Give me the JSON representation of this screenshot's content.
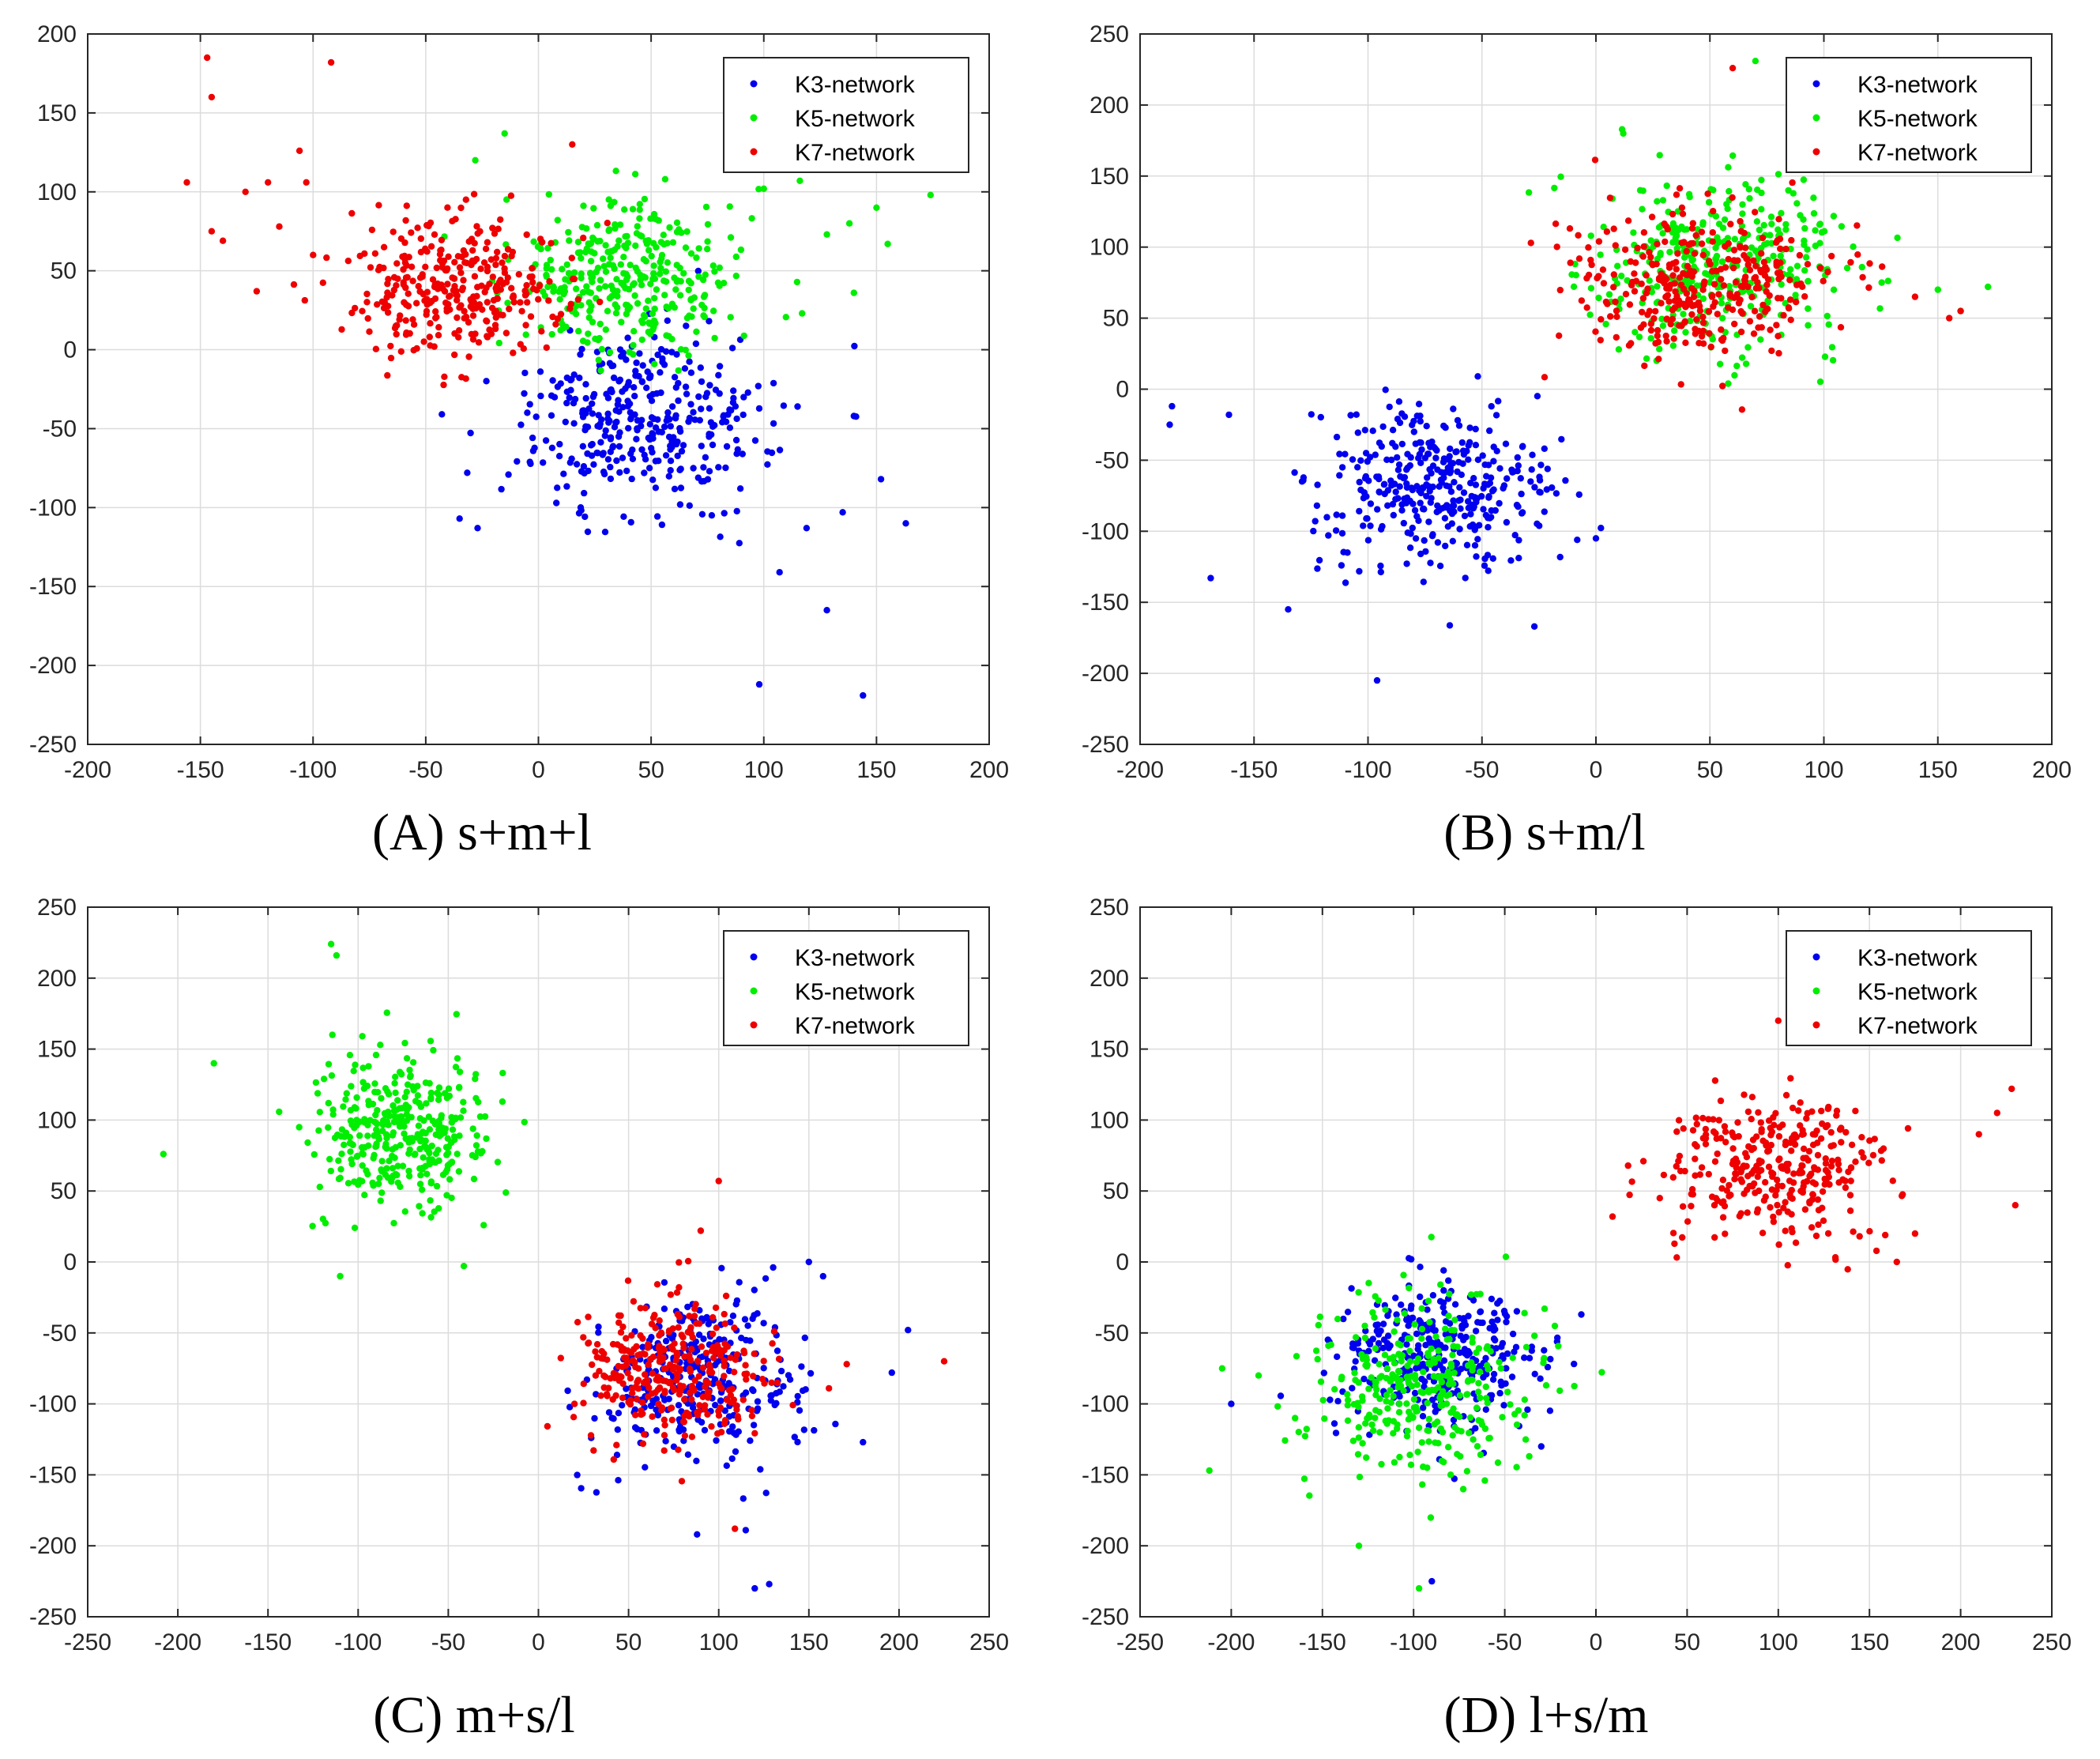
{
  "colors": {
    "k3": "#0000ee",
    "k5": "#00ee00",
    "k7": "#ee0000",
    "grid": "#dcdcdc",
    "axis": "#262626"
  },
  "chart_data": [
    {
      "type": "scatter",
      "title": "(A) s+m+l",
      "xlim": [
        -200,
        200
      ],
      "ylim": [
        -250,
        200
      ],
      "xticks": [
        -200,
        -150,
        -100,
        -50,
        0,
        50,
        100,
        150,
        200
      ],
      "yticks": [
        -250,
        -200,
        -150,
        -100,
        -50,
        0,
        50,
        100,
        150,
        200
      ],
      "legend": [
        "K3-network",
        "K5-network",
        "K7-network"
      ],
      "legend_position": "top-right",
      "series": [
        {
          "name": "K3-network",
          "color": "#0000ee",
          "center": [
            45,
            -45
          ],
          "spread": [
            28,
            28
          ],
          "n": 360,
          "extra": [
            [
              98,
              -212
            ],
            [
              144,
              -219
            ],
            [
              128,
              -165
            ],
            [
              107,
              -141
            ],
            [
              140,
              -42
            ],
            [
              163,
              -110
            ],
            [
              152,
              -82
            ],
            [
              135,
              -103
            ],
            [
              -35,
              -107
            ],
            [
              -27,
              -113
            ],
            [
              115,
              -36
            ],
            [
              119,
              -113
            ]
          ]
        },
        {
          "name": "K5-network",
          "color": "#00ee00",
          "center": [
            38,
            45
          ],
          "spread": [
            25,
            24
          ],
          "n": 340,
          "extra": [
            [
              174,
              98
            ],
            [
              155,
              67
            ],
            [
              150,
              90
            ],
            [
              140,
              36
            ],
            [
              138,
              80
            ],
            [
              128,
              73
            ],
            [
              117,
              23
            ],
            [
              116,
              107
            ],
            [
              100,
              102
            ],
            [
              -15,
              137
            ],
            [
              -28,
              120
            ]
          ]
        },
        {
          "name": "K7-network",
          "color": "#ee0000",
          "center": [
            -40,
            40
          ],
          "spread": [
            24,
            23
          ],
          "n": 330,
          "extra": [
            [
              -147,
              185
            ],
            [
              -145,
              160
            ],
            [
              -92,
              182
            ],
            [
              -156,
              106
            ],
            [
              -130,
              100
            ],
            [
              -120,
              106
            ],
            [
              -115,
              78
            ],
            [
              -106,
              126
            ],
            [
              -103,
              106
            ],
            [
              -100,
              60
            ],
            [
              -125,
              37
            ],
            [
              -145,
              75
            ],
            [
              -140,
              69
            ],
            [
              15,
              130
            ]
          ]
        }
      ]
    },
    {
      "type": "scatter",
      "title": "(B) s+m/l",
      "xlim": [
        -200,
        200
      ],
      "ylim": [
        -250,
        250
      ],
      "xticks": [
        -200,
        -150,
        -100,
        -50,
        0,
        50,
        100,
        150,
        200
      ],
      "yticks": [
        -250,
        -200,
        -150,
        -100,
        -50,
        0,
        50,
        100,
        150,
        200,
        250
      ],
      "legend": [
        "K3-network",
        "K5-network",
        "K7-network"
      ],
      "legend_position": "top-right",
      "series": [
        {
          "name": "K3-network",
          "color": "#0000ee",
          "center": [
            -70,
            -70
          ],
          "spread": [
            27,
            30
          ],
          "n": 360,
          "extra": [
            [
              -186,
              -12
            ],
            [
              -187,
              -25
            ],
            [
              -169,
              -133
            ],
            [
              -161,
              -18
            ],
            [
              -135,
              -155
            ],
            [
              -96,
              -205
            ],
            [
              -27,
              -167
            ],
            [
              0,
              -105
            ]
          ]
        },
        {
          "name": "K5-network",
          "color": "#00ee00",
          "center": [
            55,
            85
          ],
          "spread": [
            30,
            30
          ],
          "n": 360,
          "extra": [
            [
              172,
              72
            ],
            [
              160,
              55
            ],
            [
              150,
              70
            ],
            [
              70,
              231
            ],
            [
              12,
              180
            ]
          ]
        },
        {
          "name": "K7-network",
          "color": "#ee0000",
          "center": [
            50,
            75
          ],
          "spread": [
            28,
            27
          ],
          "n": 340,
          "extra": [
            [
              60,
              226
            ],
            [
              160,
              55
            ],
            [
              155,
              50
            ],
            [
              140,
              65
            ],
            [
              5,
              60
            ]
          ]
        }
      ]
    },
    {
      "type": "scatter",
      "title": "(C) m+s/l",
      "xlim": [
        -250,
        250
      ],
      "ylim": [
        -250,
        250
      ],
      "xticks": [
        -250,
        -200,
        -150,
        -100,
        -50,
        0,
        50,
        100,
        150,
        200,
        250
      ],
      "yticks": [
        -250,
        -200,
        -150,
        -100,
        -50,
        0,
        50,
        100,
        150,
        200,
        250
      ],
      "legend": [
        "K3-network",
        "K5-network",
        "K7-network"
      ],
      "legend_position": "top-right",
      "series": [
        {
          "name": "K3-network",
          "color": "#0000ee",
          "center": [
            85,
            -85
          ],
          "spread": [
            28,
            30
          ],
          "n": 330,
          "extra": [
            [
              120,
              -230
            ],
            [
              128,
              -227
            ],
            [
              88,
              -192
            ],
            [
              115,
              -189
            ],
            [
              205,
              -48
            ],
            [
              196,
              -78
            ],
            [
              180,
              -127
            ],
            [
              150,
              0
            ]
          ]
        },
        {
          "name": "K5-network",
          "color": "#00ee00",
          "center": [
            -75,
            90
          ],
          "spread": [
            26,
            28
          ],
          "n": 360,
          "extra": [
            [
              -208,
              76
            ],
            [
              -180,
              140
            ],
            [
              -115,
              224
            ],
            [
              -112,
              216
            ],
            [
              -110,
              -10
            ],
            [
              -20,
              113
            ]
          ]
        },
        {
          "name": "K7-network",
          "color": "#ee0000",
          "center": [
            75,
            -75
          ],
          "spread": [
            26,
            24
          ],
          "n": 330,
          "extra": [
            [
              225,
              -70
            ],
            [
              100,
              57
            ],
            [
              90,
              22
            ],
            [
              20,
              -100
            ],
            [
              109,
              -188
            ],
            [
              171,
              -72
            ]
          ]
        }
      ]
    },
    {
      "type": "scatter",
      "title": "(D) l+s/m",
      "xlim": [
        -250,
        250
      ],
      "ylim": [
        -250,
        250
      ],
      "xticks": [
        -250,
        -200,
        -150,
        -100,
        -50,
        0,
        50,
        100,
        150,
        200,
        250
      ],
      "yticks": [
        -250,
        -200,
        -150,
        -100,
        -50,
        0,
        50,
        100,
        150,
        200,
        250
      ],
      "legend": [
        "K3-network",
        "K5-network",
        "K7-network"
      ],
      "legend_position": "top-right",
      "series": [
        {
          "name": "K3-network",
          "color": "#0000ee",
          "center": [
            -85,
            -65
          ],
          "spread": [
            27,
            25
          ],
          "n": 330,
          "extra": [
            [
              -90,
              -225
            ],
            [
              -200,
              -100
            ],
            [
              -8,
              -37
            ],
            [
              -30,
              -130
            ],
            [
              -120,
              -30
            ]
          ]
        },
        {
          "name": "K5-network",
          "color": "#00ee00",
          "center": [
            -95,
            -85
          ],
          "spread": [
            30,
            32
          ],
          "n": 330,
          "extra": [
            [
              -212,
              -147
            ],
            [
              -205,
              -75
            ],
            [
              -185,
              -80
            ],
            [
              -97,
              -230
            ],
            [
              -130,
              -200
            ],
            [
              -165,
              -110
            ]
          ]
        },
        {
          "name": "K7-network",
          "color": "#ee0000",
          "center": [
            100,
            65
          ],
          "spread": [
            30,
            26
          ],
          "n": 330,
          "extra": [
            [
              230,
              40
            ],
            [
              228,
              122
            ],
            [
              220,
              105
            ],
            [
              210,
              90
            ],
            [
              175,
              20
            ],
            [
              165,
              0
            ],
            [
              35,
              45
            ],
            [
              100,
              170
            ]
          ]
        }
      ]
    }
  ]
}
